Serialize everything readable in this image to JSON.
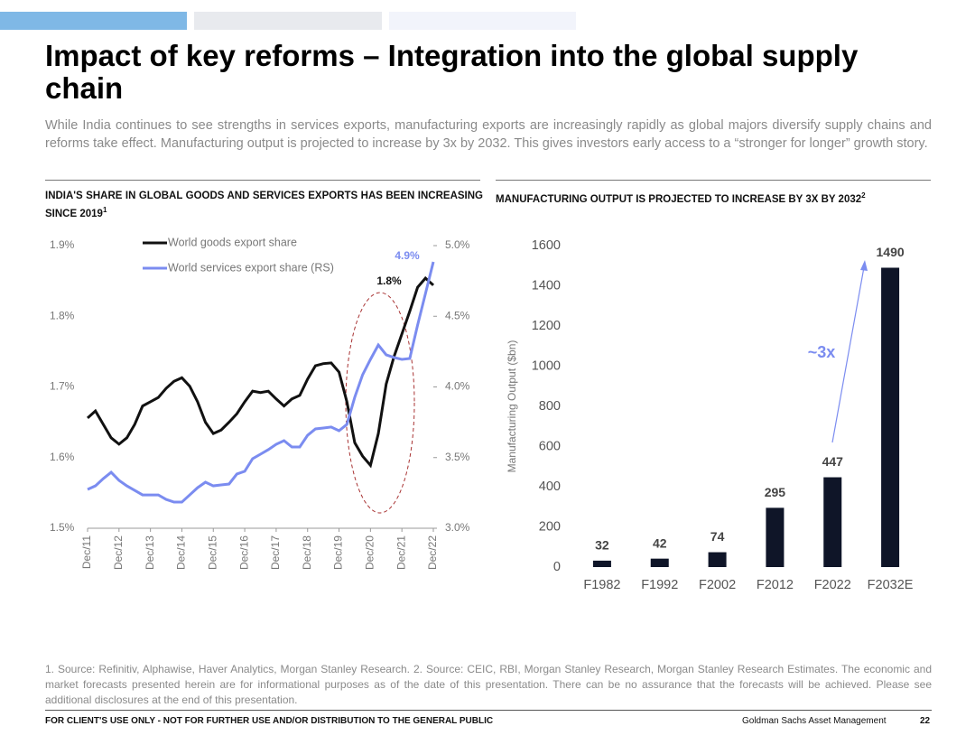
{
  "header": {
    "title": "Impact of key reforms – Integration into the global supply chain",
    "subtitle": "While India continues to see strengths in services exports, manufacturing exports are increasingly rapidly as global majors diversify supply chains and reforms take effect. Manufacturing output is projected to increase by 3x by 2032. This gives investors early access to a “stronger for longer” growth story."
  },
  "chart_data": [
    {
      "type": "line",
      "title": "INDIA'S SHARE IN GLOBAL GOODS AND SERVICES EXPORTS HAS BEEN INCREASING SINCE 2019",
      "title_note": "1",
      "categories": [
        "Dec/11",
        null,
        null,
        null,
        "Dec/12",
        null,
        null,
        null,
        "Dec/13",
        null,
        null,
        null,
        "Dec/14",
        null,
        null,
        null,
        "Dec/15",
        null,
        null,
        null,
        "Dec/16",
        null,
        null,
        null,
        "Dec/17",
        null,
        null,
        null,
        "Dec/18",
        null,
        null,
        null,
        "Dec/19",
        null,
        null,
        null,
        "Dec/20",
        null,
        null,
        null,
        "Dec/21",
        null,
        null,
        null,
        "Dec/22"
      ],
      "series": [
        {
          "name": "World goods export share",
          "color": "#111111",
          "values": [
            1.656,
            1.666,
            1.647,
            1.628,
            1.619,
            1.628,
            1.647,
            1.673,
            1.679,
            1.685,
            1.698,
            1.708,
            1.713,
            1.701,
            1.679,
            1.65,
            1.634,
            1.639,
            1.65,
            1.662,
            1.679,
            1.694,
            1.692,
            1.694,
            1.683,
            1.673,
            1.683,
            1.688,
            1.711,
            1.73,
            1.733,
            1.734,
            1.721,
            1.679,
            1.621,
            1.602,
            1.589,
            1.634,
            1.704,
            1.743,
            1.775,
            1.807,
            1.841,
            1.854,
            1.844
          ]
        },
        {
          "name": "World services export share (RS)",
          "color": "#7b8cf0",
          "axis": "y2",
          "values": [
            3.275,
            3.3,
            3.351,
            3.396,
            3.339,
            3.3,
            3.268,
            3.236,
            3.236,
            3.236,
            3.204,
            3.185,
            3.185,
            3.236,
            3.287,
            3.326,
            3.3,
            3.307,
            3.313,
            3.384,
            3.403,
            3.492,
            3.524,
            3.556,
            3.594,
            3.62,
            3.575,
            3.575,
            3.658,
            3.703,
            3.709,
            3.716,
            3.69,
            3.735,
            3.927,
            4.086,
            4.195,
            4.297,
            4.227,
            4.208,
            4.195,
            4.201,
            4.438,
            4.661,
            4.885
          ]
        }
      ],
      "ylim": [
        1.5,
        1.9
      ],
      "yticks": [
        {
          "value": 1.5,
          "label": "1.5%"
        },
        {
          "value": 1.6,
          "label": "1.6%"
        },
        {
          "value": 1.7,
          "label": "1.7%"
        },
        {
          "value": 1.8,
          "label": "1.8%"
        },
        {
          "value": 1.9,
          "label": "1.9%"
        }
      ],
      "y2lim": [
        3,
        5
      ],
      "y2ticks": [
        {
          "value": 3,
          "label": "3.0%"
        },
        {
          "value": 3.5,
          "label": "3.5%"
        },
        {
          "value": 4,
          "label": "4.0%"
        },
        {
          "value": 4.5,
          "label": "4.5%"
        },
        {
          "value": 5,
          "label": "5.0%"
        }
      ],
      "annotations": [
        "1.8%",
        "4.9%"
      ],
      "legend": "top-left"
    },
    {
      "type": "bar",
      "title": "MANUFACTURING OUTPUT IS PROJECTED TO INCREASE BY 3X BY 2032",
      "title_note": "2",
      "categories": [
        "F1982",
        "F1992",
        "F2002",
        "F2012",
        "F2022",
        "F2032E"
      ],
      "values": [
        32,
        42,
        74,
        295,
        447,
        1490
      ],
      "color": "#0f1528",
      "ylabel": "Manufacturing Output ($bn)",
      "ylim": [
        0,
        1600
      ],
      "yticks": [
        0,
        200,
        400,
        600,
        800,
        1000,
        1200,
        1400,
        1600
      ],
      "annotations": [
        "~3x"
      ]
    }
  ],
  "footnote": "1. Source: Refinitiv, Alphawise, Haver Analytics, Morgan Stanley Research. 2. Source: CEIC, RBI, Morgan Stanley Research, Morgan Stanley Research Estimates. The economic and market forecasts presented herein are for informational purposes as of the date of this presentation. There can be no assurance that the forecasts will be achieved.  Please see additional disclosures at the end of this presentation.",
  "footer": {
    "disclaimer": "FOR CLIENT'S USE ONLY - NOT FOR FURTHER USE AND/OR DISTRIBUTION TO THE GENERAL PUBLIC",
    "company": "Goldman Sachs Asset Management",
    "page": "22"
  }
}
